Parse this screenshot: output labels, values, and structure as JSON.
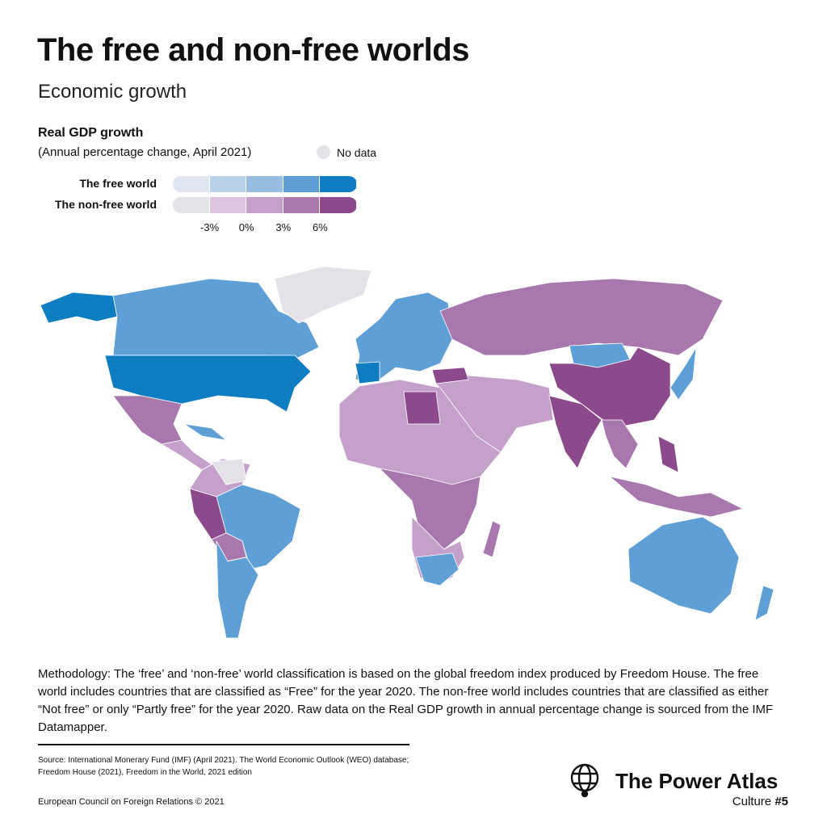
{
  "header": {
    "title": "The free and non-free worlds",
    "subtitle": "Economic growth"
  },
  "legend": {
    "title": "Real GDP growth",
    "subtitle": "(Annual percentage change, April 2021)",
    "no_data": "No data",
    "rows": [
      {
        "label": "The free world",
        "colors": [
          "#dfe6ef",
          "#b9d2ea",
          "#98bde2",
          "#5ea0d6",
          "#0f7dc2"
        ]
      },
      {
        "label": "The non-free world",
        "colors": [
          "#e4e2e8",
          "#dcc5dd",
          "#c4a0cb",
          "#a777ae",
          "#8c4a8d"
        ]
      }
    ],
    "scale": [
      "-3%",
      "0%",
      "3%",
      "6%"
    ]
  },
  "methodology": "Methodology: The ‘free’ and ‘non-free’ world classification is based on the global freedom index produced by Freedom House. The free world includes countries that are classified as “Free” for the year 2020. The non-free world includes countries that are classified as either “Not free” or only “Partly free” for the year 2020. Raw data on the Real GDP growth in annual percentage change is sourced from the IMF Datamapper.",
  "source": [
    "Source: International Monerary Fund (IMF) (April 2021). The World Economic Outlook (WEO) database;",
    "Freedom House (2021), Freedom in the World, 2021 edition"
  ],
  "copyright": "European Council on Foreign Relations © 2021",
  "brand": {
    "name": "The Power Atlas",
    "series": "Culture",
    "number": "#5"
  }
}
